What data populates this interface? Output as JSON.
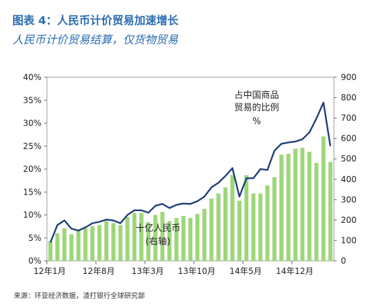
{
  "header": {
    "title": "图表 4：人民币计价贸易加速增长",
    "subtitle": "人民币计价贸易结算，仅货物贸易"
  },
  "footer": {
    "source": "来源：环亚经济数据，渣打银行全球研究部"
  },
  "chart_data": {
    "type": "bar",
    "title": "",
    "xlabel": "",
    "x_tick_labels": [
      "12年1月",
      "12年8月",
      "13年3月",
      "13年10月",
      "14年5月",
      "14年12月"
    ],
    "x_tick_indices": [
      0,
      7,
      14,
      21,
      28,
      35
    ],
    "left_axis": {
      "ticks": [
        "0%",
        "5%",
        "10%",
        "15%",
        "20%",
        "25%",
        "30%",
        "35%",
        "40%"
      ],
      "range": [
        0,
        40
      ],
      "unit": "%"
    },
    "right_axis": {
      "ticks": [
        "0",
        "100",
        "200",
        "300",
        "400",
        "500",
        "600",
        "700",
        "800",
        "900"
      ],
      "range": [
        0,
        900
      ]
    },
    "annotations": {
      "line_label": [
        "占中国商品",
        "贸易的比例",
        "%"
      ],
      "bar_label": [
        "十亿人民币",
        "(右轴)"
      ]
    },
    "colors": {
      "bars": "#9ed67a",
      "line": "#1f3f7a",
      "axis": "#444444"
    },
    "series": [
      {
        "name": "十亿人民币(右轴)",
        "kind": "bar",
        "axis": "right",
        "values": [
          95,
          135,
          160,
          130,
          150,
          160,
          170,
          175,
          195,
          185,
          175,
          215,
          235,
          235,
          190,
          225,
          240,
          195,
          210,
          220,
          210,
          230,
          255,
          305,
          330,
          360,
          420,
          295,
          420,
          330,
          330,
          370,
          410,
          520,
          525,
          550,
          555,
          535,
          480,
          610,
          485
        ]
      },
      {
        "name": "占中国商品贸易的比例",
        "kind": "line",
        "axis": "left",
        "values": [
          4.0,
          7.8,
          8.8,
          7.0,
          6.6,
          7.3,
          8.2,
          8.5,
          9.0,
          8.8,
          8.2,
          10.0,
          11.0,
          11.0,
          10.5,
          12.0,
          12.4,
          11.5,
          12.2,
          12.5,
          12.4,
          13.0,
          14.0,
          16.0,
          17.0,
          18.5,
          20.2,
          14.0,
          18.0,
          18.0,
          20.0,
          19.8,
          24.0,
          25.5,
          25.8,
          26.0,
          26.5,
          28.0,
          31.0,
          34.5,
          25.0
        ]
      }
    ]
  }
}
